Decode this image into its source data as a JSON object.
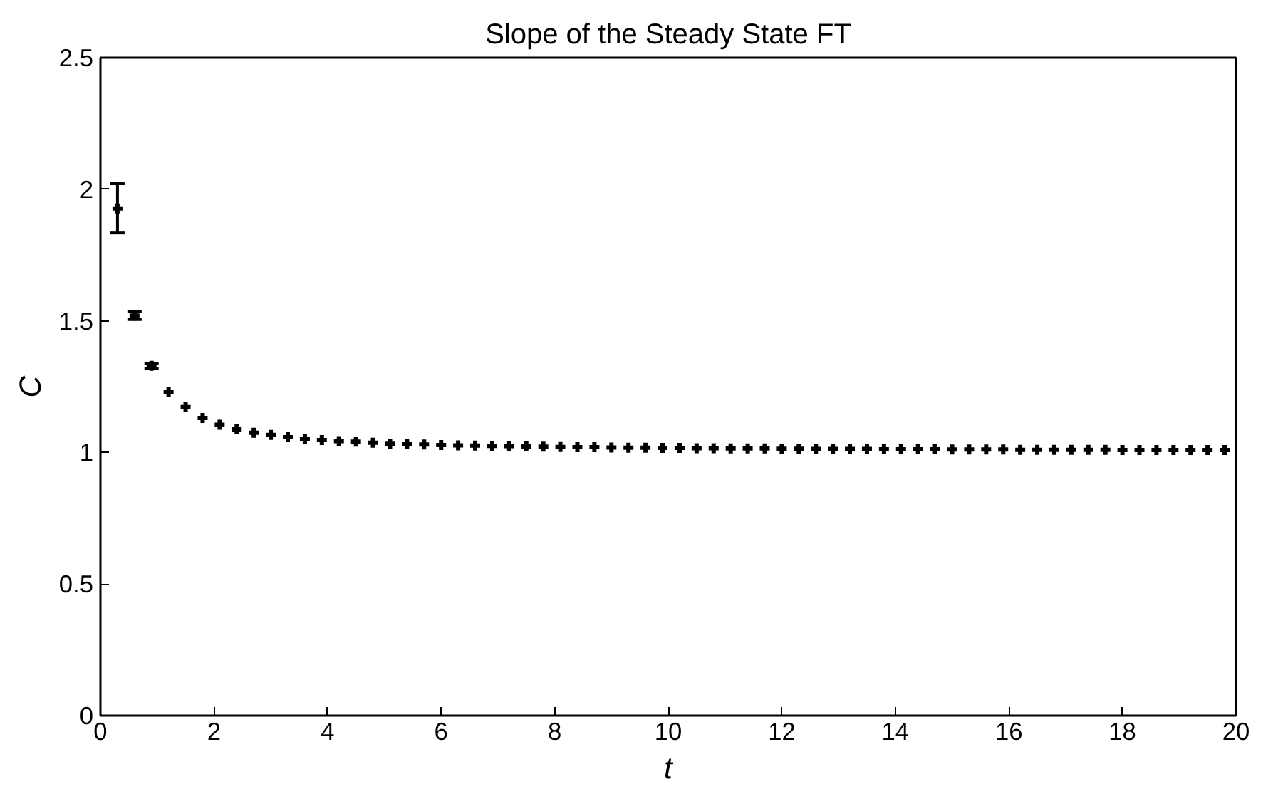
{
  "chart_data": {
    "type": "scatter",
    "title": "Slope of the Steady State FT",
    "xlabel": "t",
    "ylabel": "C",
    "x": [
      0.3,
      0.6,
      0.9,
      1.2,
      1.5,
      1.8,
      2.1,
      2.4,
      2.7,
      3.0,
      3.3,
      3.6,
      3.9,
      4.2,
      4.5,
      4.8,
      5.1,
      5.4,
      5.7,
      6.0,
      6.3,
      6.6,
      6.9,
      7.2,
      7.5,
      7.8,
      8.1,
      8.4,
      8.7,
      9.0,
      9.3,
      9.6,
      9.9,
      10.2,
      10.5,
      10.8,
      11.1,
      11.4,
      11.7,
      12.0,
      12.3,
      12.6,
      12.9,
      13.2,
      13.5,
      13.8,
      14.1,
      14.4,
      14.7,
      15.0,
      15.3,
      15.6,
      15.9,
      16.2,
      16.5,
      16.8,
      17.1,
      17.4,
      17.7,
      18.0,
      18.3,
      18.6,
      18.9,
      19.2,
      19.5,
      19.8
    ],
    "series": [
      {
        "color": "#000000",
        "values": [
          1.927,
          1.52,
          1.329,
          1.23,
          1.172,
          1.131,
          1.105,
          1.088,
          1.075,
          1.067,
          1.058,
          1.052,
          1.047,
          1.043,
          1.041,
          1.037,
          1.033,
          1.031,
          1.03,
          1.028,
          1.027,
          1.026,
          1.025,
          1.024,
          1.023,
          1.022,
          1.021,
          1.02,
          1.02,
          1.019,
          1.018,
          1.018,
          1.017,
          1.017,
          1.016,
          1.016,
          1.015,
          1.015,
          1.015,
          1.014,
          1.014,
          1.013,
          1.013,
          1.013,
          1.013,
          1.012,
          1.012,
          1.012,
          1.012,
          1.011,
          1.011,
          1.011,
          1.011,
          1.01,
          1.01,
          1.01,
          1.01,
          1.01,
          1.01,
          1.009,
          1.009,
          1.009,
          1.009,
          1.009,
          1.009,
          1.009
        ],
        "errors": [
          [
            1.834,
            2.021
          ],
          0.015,
          0.01,
          null,
          null,
          null,
          null,
          null,
          null,
          null,
          null,
          null,
          null,
          null,
          null,
          null,
          null,
          null,
          null,
          null,
          null,
          null,
          null,
          null,
          null,
          null,
          null,
          null,
          null,
          null,
          null,
          null,
          null,
          null,
          null,
          null,
          null,
          null,
          null,
          null,
          null,
          null,
          null,
          null,
          null,
          null,
          null,
          null,
          null,
          null,
          null,
          null,
          null,
          null,
          null,
          null,
          null,
          null,
          null,
          null,
          null,
          null,
          null,
          null,
          null,
          null
        ]
      }
    ],
    "xlim": [
      0,
      20
    ],
    "xticks": [
      0,
      2,
      4,
      6,
      8,
      10,
      12,
      14,
      16,
      18,
      20
    ],
    "ylim": [
      0,
      2.5
    ],
    "yticks": [
      0,
      0.5,
      1,
      1.5,
      2,
      2.5
    ],
    "marker": "cross",
    "grid": false,
    "legend": false
  }
}
